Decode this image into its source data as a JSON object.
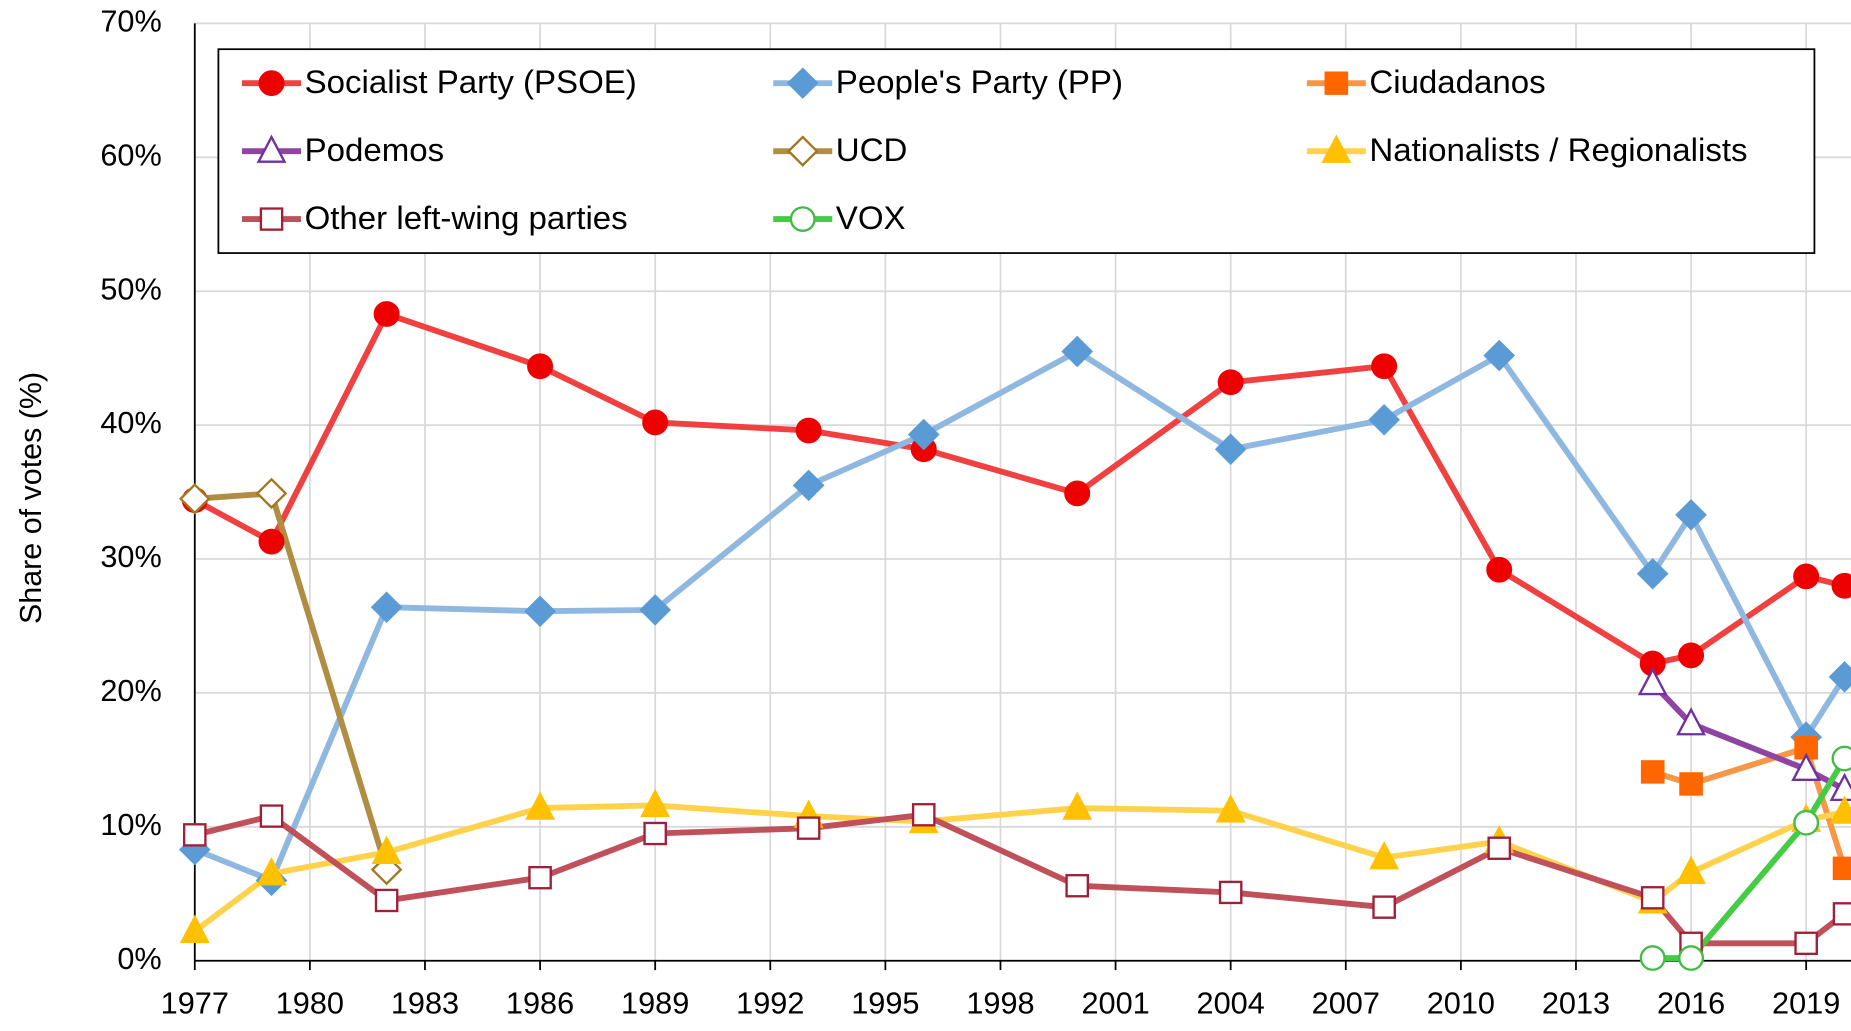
{
  "chart_data": {
    "type": "line",
    "y_label": "Share of votes (%)",
    "x": [
      1977,
      1979,
      1982,
      1986,
      1989,
      1993,
      1996,
      2000,
      2004,
      2008,
      2011,
      2015,
      2016,
      2019,
      2020
    ],
    "xlim": [
      1977,
      2020.2
    ],
    "xticks": [
      1977,
      1980,
      1983,
      1986,
      1989,
      1992,
      1995,
      1998,
      2001,
      2004,
      2007,
      2010,
      2013,
      2016,
      2019
    ],
    "ylim": [
      0,
      70
    ],
    "yticks": [
      {
        "value": 0,
        "label": "0%"
      },
      {
        "value": 10,
        "label": "10%"
      },
      {
        "value": 20,
        "label": "20%"
      },
      {
        "value": 30,
        "label": "30%"
      },
      {
        "value": 40,
        "label": "40%"
      },
      {
        "value": 50,
        "label": "50%"
      },
      {
        "value": 60,
        "label": "60%"
      },
      {
        "value": 70,
        "label": "70%"
      }
    ],
    "grid": true,
    "legend": "top",
    "series": [
      {
        "name": "Socialist Party (PSOE)",
        "color": "#f04040",
        "marker_color": "#ee0000",
        "marker": "circle",
        "filled": true,
        "values": [
          34.4,
          31.3,
          48.3,
          44.4,
          40.2,
          39.6,
          38.2,
          34.9,
          43.2,
          44.4,
          29.2,
          22.2,
          22.8,
          28.7,
          28.0
        ]
      },
      {
        "name": "People's Party (PP)",
        "color": "#8fb8e0",
        "marker_color": "#5b9bd5",
        "marker": "diamond",
        "filled": true,
        "values": [
          8.3,
          6.0,
          26.4,
          26.1,
          26.2,
          35.5,
          39.3,
          45.5,
          38.2,
          40.4,
          45.2,
          28.9,
          33.3,
          16.7,
          21.2
        ]
      },
      {
        "name": "Ciudadanos",
        "color": "#f79646",
        "marker_color": "#ff6600",
        "marker": "square",
        "filled": true,
        "values": [
          null,
          null,
          null,
          null,
          null,
          null,
          null,
          null,
          null,
          null,
          null,
          14.1,
          13.2,
          15.9,
          6.9
        ]
      },
      {
        "name": "Podemos",
        "color": "#8e44a0",
        "marker_color": "#7030a0",
        "marker": "triangle",
        "filled": false,
        "values": [
          null,
          null,
          null,
          null,
          null,
          null,
          null,
          null,
          null,
          null,
          null,
          20.7,
          17.7,
          14.3,
          12.8
        ]
      },
      {
        "name": "UCD",
        "color": "#b08d40",
        "marker_color": "#a07820",
        "marker": "diamond",
        "filled": false,
        "values": [
          34.5,
          34.9,
          6.8,
          null,
          null,
          null,
          null,
          null,
          null,
          null,
          null,
          null,
          null,
          null,
          null
        ]
      },
      {
        "name": "Nationalists / Regionalists",
        "color": "#ffd24d",
        "marker_color": "#ffc000",
        "marker": "triangle",
        "filled": true,
        "values": [
          2.2,
          6.5,
          8.1,
          11.4,
          11.6,
          10.8,
          10.4,
          11.4,
          11.2,
          7.7,
          8.9,
          4.4,
          6.6,
          10.5,
          11.1
        ]
      },
      {
        "name": "Other left-wing parties",
        "color": "#c0505a",
        "marker_color": "#a0203a",
        "marker": "square",
        "filled": false,
        "values": [
          9.4,
          10.8,
          4.5,
          6.2,
          9.5,
          9.9,
          10.9,
          5.6,
          5.1,
          4.0,
          8.4,
          4.7,
          1.3,
          1.3,
          3.5
        ]
      },
      {
        "name": "VOX",
        "color": "#44cc44",
        "marker_color": "#44bb44",
        "marker": "circle",
        "filled": false,
        "values": [
          null,
          null,
          null,
          null,
          null,
          null,
          null,
          null,
          null,
          null,
          null,
          0.2,
          0.2,
          10.3,
          15.1
        ]
      }
    ]
  }
}
